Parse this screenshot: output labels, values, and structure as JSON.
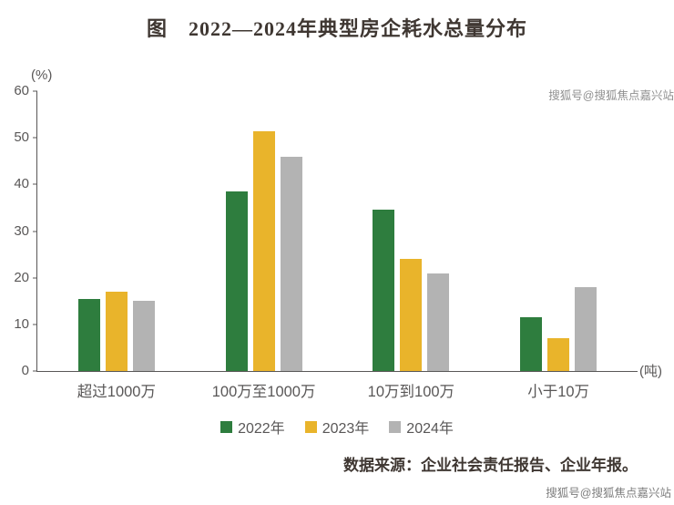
{
  "title": "图　2022—2024年典型房企耗水总量分布",
  "source_note": "数据来源：企业社会责任报告、企业年报。",
  "watermarks": {
    "top": "搜狐号@搜狐焦点嘉兴站",
    "bottom": "搜狐号@搜狐焦点嘉兴站"
  },
  "colors": {
    "series_2022": "#2e7d3e",
    "series_2023": "#e9b42b",
    "series_2024": "#b3b3b3",
    "axis": "#595757",
    "title_text": "#3f3732"
  },
  "chart_data": {
    "type": "bar",
    "title": "图　2022—2024年典型房企耗水总量分布",
    "ylabel": "(%)",
    "xlabel": "",
    "x_unit": "(吨)",
    "categories": [
      "超过1000万",
      "100万至1000万",
      "10万到100万",
      "小于10万"
    ],
    "series": [
      {
        "name": "2022年",
        "color": "#2e7d3e",
        "values": [
          15.5,
          38.5,
          34.5,
          11.5
        ]
      },
      {
        "name": "2023年",
        "color": "#e9b42b",
        "values": [
          17,
          51.5,
          24,
          7
        ]
      },
      {
        "name": "2024年",
        "color": "#b3b3b3",
        "values": [
          15,
          46,
          21,
          18
        ]
      }
    ],
    "ylim": [
      0,
      60
    ],
    "yticks": [
      0,
      10,
      20,
      30,
      40,
      50,
      60
    ],
    "grid": false,
    "legend_position": "bottom"
  }
}
